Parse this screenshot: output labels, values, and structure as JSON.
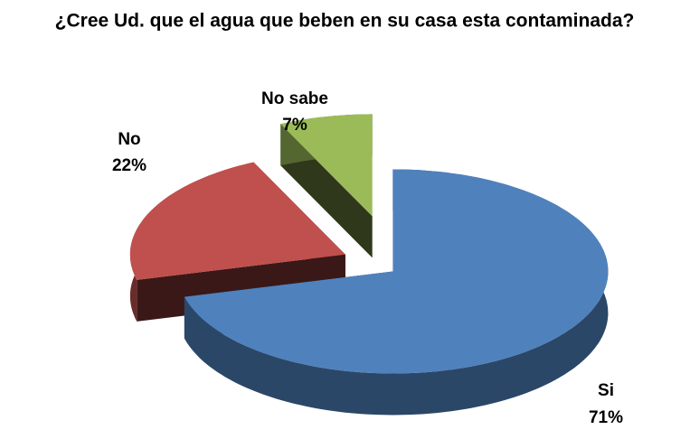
{
  "chart_data": {
    "type": "pie",
    "title": "¿Cree Ud. que el agua que beben en su casa esta contaminada?",
    "categories": [
      "Si",
      "No",
      "No sabe"
    ],
    "values": [
      71,
      22,
      7
    ],
    "value_labels": [
      "71%",
      "22%",
      "7%"
    ],
    "colors": [
      "#4f81bd",
      "#c0504d",
      "#9bbb59"
    ]
  }
}
